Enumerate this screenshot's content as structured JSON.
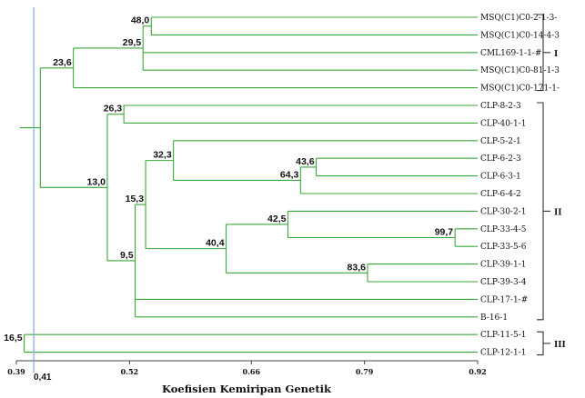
{
  "axis": {
    "min": 0.39,
    "max": 0.92,
    "ticks": [
      "0.39",
      "0.52",
      "0.66",
      "0.79",
      "0.92"
    ],
    "title": "Koefisien Kemiripan Genetik",
    "reference_value": 0.41,
    "reference_label": "0,41"
  },
  "leaves": [
    "MSQ(C1)C0-2-1-3-",
    "MSQ(C1)C0-14-4-3",
    "CML169-1-1-#",
    "MSQ(C1)C0-81-1-3",
    "MSQ(C1)C0-171-1-",
    "CLP-8-2-3",
    "CLP-40-1-1",
    "CLP-5-2-1",
    "CLP-6-2-3",
    "CLP-6-3-1",
    "CLP-6-4-2",
    "CLP-30-2-1",
    "CLP-33-4-5",
    "CLP-33-5-6",
    "CLP-39-1-1",
    "CLP-39-3-4",
    "CLP-17-1-#",
    "B-16-1",
    "CLP-11-5-1",
    "CLP-12-1-1"
  ],
  "nodes": [
    {
      "id": "n48",
      "sim": 0.545,
      "label": "48,0",
      "children": [
        "L0",
        "L1"
      ]
    },
    {
      "id": "n295",
      "sim": 0.5355,
      "label": "29,5",
      "children": [
        "n48",
        "L2",
        "L3"
      ]
    },
    {
      "id": "n236",
      "sim": 0.4555,
      "label": "23,6",
      "children": [
        "n295",
        "L4"
      ]
    },
    {
      "id": "n263",
      "sim": 0.5135,
      "label": "26,3",
      "children": [
        "L5",
        "L6"
      ]
    },
    {
      "id": "n436",
      "sim": 0.7345,
      "label": "43,6",
      "children": [
        "L8",
        "L9"
      ]
    },
    {
      "id": "n643",
      "sim": 0.7165,
      "label": "64,3",
      "children": [
        "n436",
        "L10"
      ]
    },
    {
      "id": "n323",
      "sim": 0.5705,
      "label": "32,3",
      "children": [
        "L7",
        "n643"
      ]
    },
    {
      "id": "n997",
      "sim": 0.894,
      "label": "99,7",
      "children": [
        "L12",
        "L13"
      ]
    },
    {
      "id": "n425",
      "sim": 0.702,
      "label": "42,5",
      "children": [
        "L11",
        "n997"
      ]
    },
    {
      "id": "n836",
      "sim": 0.7935,
      "label": "83,6",
      "children": [
        "L14",
        "L15"
      ]
    },
    {
      "id": "n404",
      "sim": 0.631,
      "label": "40,4",
      "children": [
        "n425",
        "n836"
      ]
    },
    {
      "id": "n153",
      "sim": 0.5385,
      "label": "15,3",
      "children": [
        "n323",
        "n404"
      ]
    },
    {
      "id": "n95",
      "sim": 0.5265,
      "label": "9,5",
      "children": [
        "n153",
        "L16",
        "L17"
      ]
    },
    {
      "id": "n130",
      "sim": 0.4945,
      "label": "13,0",
      "children": [
        "n263",
        "n95"
      ]
    },
    {
      "id": "nRoot",
      "sim": 0.4175,
      "label": "",
      "children": [
        "n236",
        "n130"
      ]
    },
    {
      "id": "n165",
      "sim": 0.399,
      "label": "16,5",
      "children": [
        "L18",
        "L19"
      ]
    }
  ],
  "groups": [
    {
      "label": "I",
      "from": 0,
      "to": 4
    },
    {
      "label": "II",
      "from": 5,
      "to": 17
    },
    {
      "label": "III",
      "from": 18,
      "to": 19
    }
  ]
}
